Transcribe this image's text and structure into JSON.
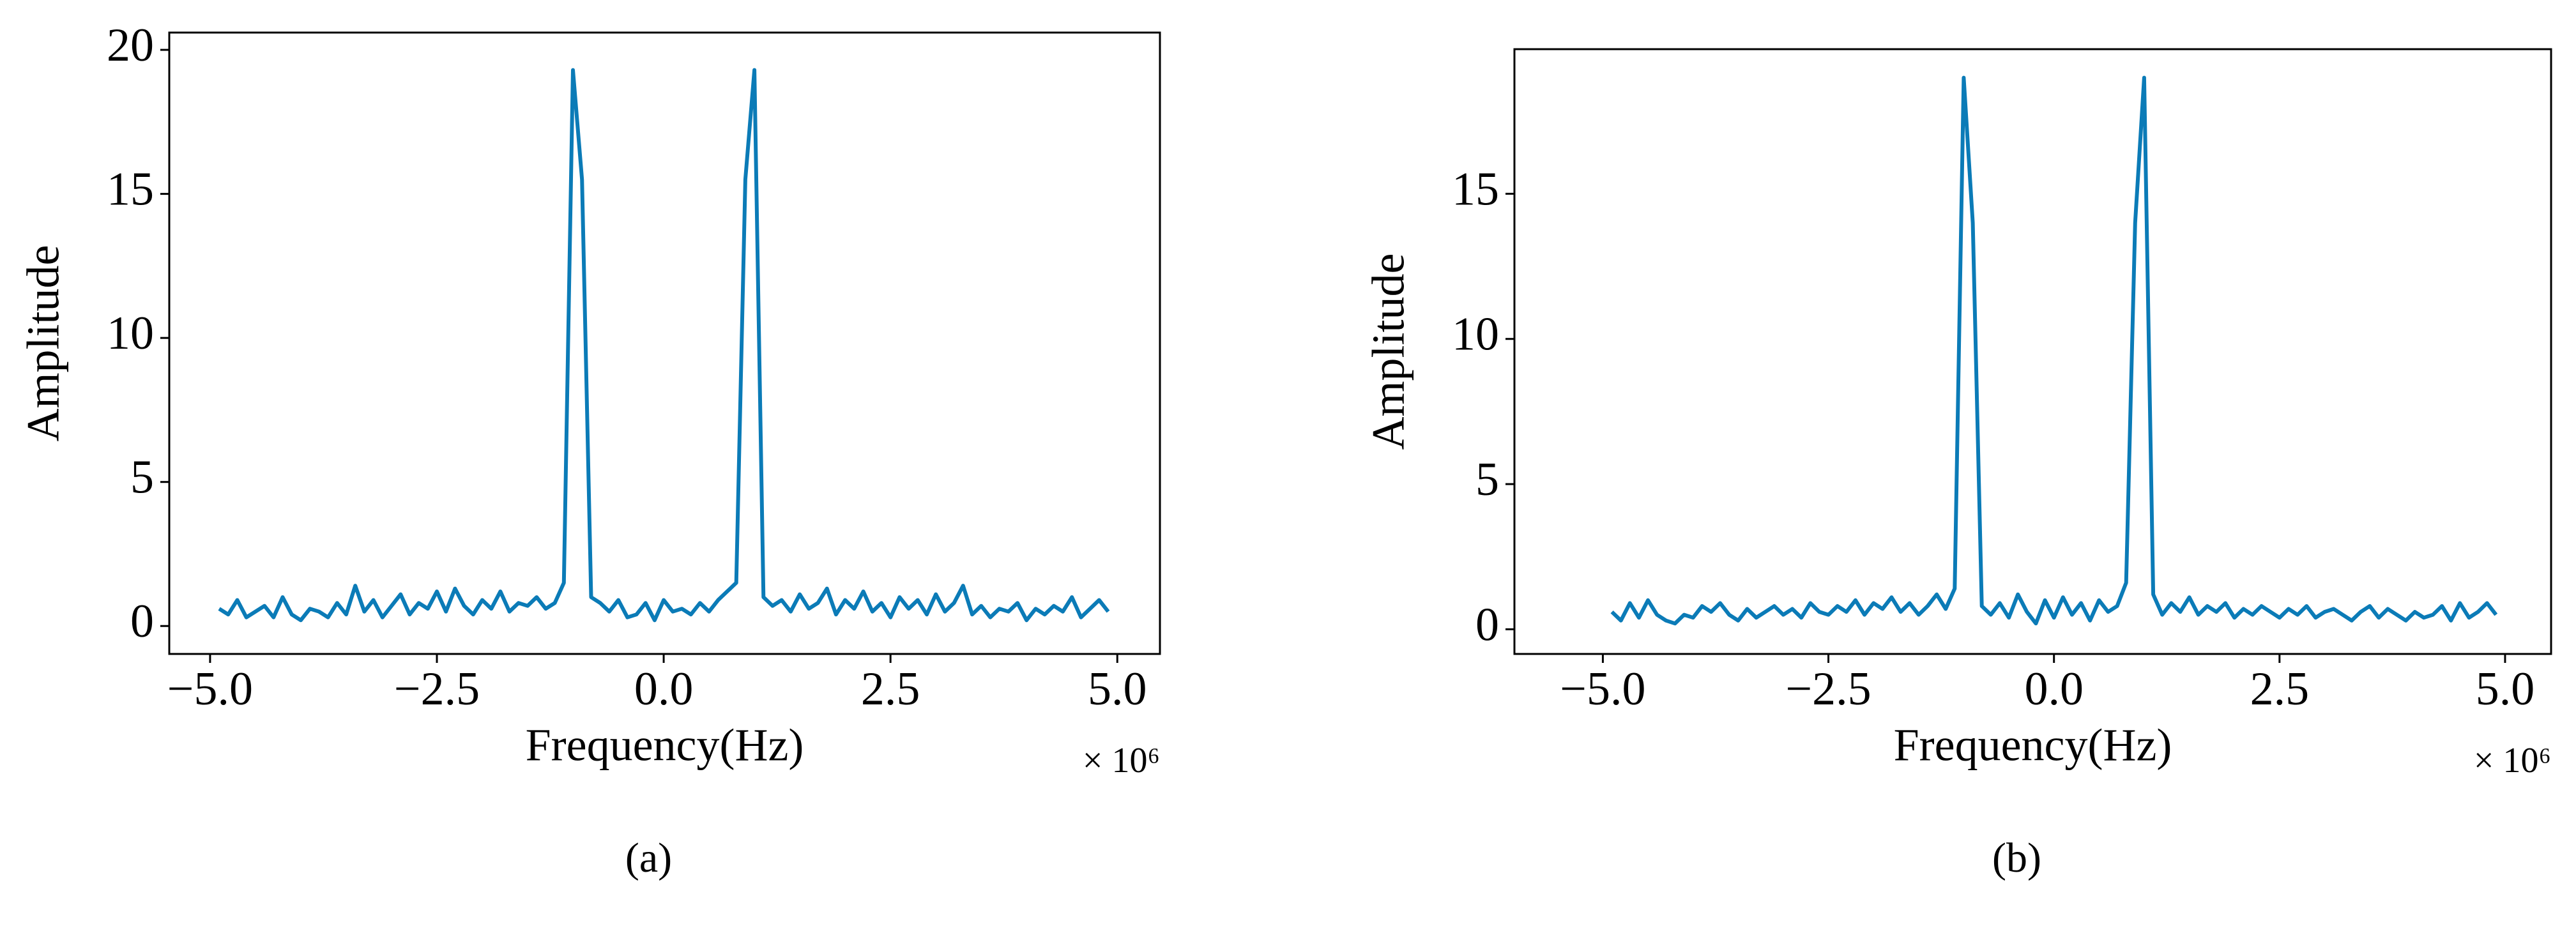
{
  "chart_data": [
    {
      "type": "line",
      "panel_label": "(a)",
      "xlabel": "Frequency(Hz)",
      "ylabel": "Amplitude",
      "x_offset_label": "× 10⁶",
      "xlim": [
        -5.45,
        5.47
      ],
      "ylim": [
        -0.97,
        20.6
      ],
      "xticks": [
        {
          "value": -5,
          "label": "−5.0"
        },
        {
          "value": -2.5,
          "label": "−2.5"
        },
        {
          "value": 0,
          "label": "0.0"
        },
        2.5,
        {
          "value": 5,
          "label": "5.0"
        }
      ],
      "yticks": [
        0,
        5,
        10,
        15,
        20
      ],
      "grid": false,
      "series": [
        {
          "color": "#0b7bb7",
          "x": [
            -4.9,
            -4.8,
            -4.7,
            -4.6,
            -4.5,
            -4.4,
            -4.3,
            -4.2,
            -4.1,
            -4.0,
            -3.9,
            -3.8,
            -3.7,
            -3.6,
            -3.5,
            -3.4,
            -3.3,
            -3.2,
            -3.1,
            -3.0,
            -2.9,
            -2.8,
            -2.7,
            -2.6,
            -2.5,
            -2.4,
            -2.3,
            -2.2,
            -2.1,
            -2.0,
            -1.9,
            -1.8,
            -1.7,
            -1.6,
            -1.5,
            -1.4,
            -1.3,
            -1.2,
            -1.1,
            -1.0,
            -0.9,
            -0.8,
            -0.7,
            -0.6,
            -0.5,
            -0.4,
            -0.3,
            -0.2,
            -0.1,
            0.0,
            0.1,
            0.2,
            0.3,
            0.4,
            0.5,
            0.6,
            0.7,
            0.8,
            0.9,
            1.0,
            1.1,
            1.2,
            1.3,
            1.4,
            1.5,
            1.6,
            1.7,
            1.8,
            1.9,
            2.0,
            2.1,
            2.2,
            2.3,
            2.4,
            2.5,
            2.6,
            2.7,
            2.8,
            2.9,
            3.0,
            3.1,
            3.2,
            3.3,
            3.4,
            3.5,
            3.6,
            3.7,
            3.8,
            3.9,
            4.0,
            4.1,
            4.2,
            4.3,
            4.4,
            4.5,
            4.6,
            4.7,
            4.8,
            4.9
          ],
          "values": [
            0.6,
            0.4,
            0.9,
            0.3,
            0.5,
            0.7,
            0.3,
            1.0,
            0.4,
            0.2,
            0.6,
            0.5,
            0.3,
            0.8,
            0.4,
            1.4,
            0.5,
            0.9,
            0.3,
            0.7,
            1.1,
            0.4,
            0.8,
            0.6,
            1.2,
            0.5,
            1.3,
            0.7,
            0.4,
            0.9,
            0.6,
            1.2,
            0.5,
            0.8,
            0.7,
            1.0,
            0.6,
            0.8,
            1.5,
            19.3,
            15.5,
            1.0,
            0.8,
            0.5,
            0.9,
            0.3,
            0.4,
            0.8,
            0.2,
            0.9,
            0.5,
            0.6,
            0.4,
            0.8,
            0.5,
            0.9,
            1.2,
            1.5,
            15.5,
            19.3,
            1.0,
            0.7,
            0.9,
            0.5,
            1.1,
            0.6,
            0.8,
            1.3,
            0.4,
            0.9,
            0.6,
            1.2,
            0.5,
            0.8,
            0.3,
            1.0,
            0.6,
            0.9,
            0.4,
            1.1,
            0.5,
            0.8,
            1.4,
            0.4,
            0.7,
            0.3,
            0.6,
            0.5,
            0.8,
            0.2,
            0.6,
            0.4,
            0.7,
            0.5,
            1.0,
            0.3,
            0.6,
            0.9,
            0.5
          ]
        }
      ]
    },
    {
      "type": "line",
      "panel_label": "(b)",
      "xlabel": "Frequency(Hz)",
      "ylabel": "Amplitude",
      "x_offset_label": "× 10⁶",
      "xlim": [
        -5.98,
        5.51
      ],
      "ylim": [
        -0.85,
        19.98
      ],
      "xticks": [
        {
          "value": -5,
          "label": "−5.0"
        },
        {
          "value": -2.5,
          "label": "−2.5"
        },
        {
          "value": 0,
          "label": "0.0"
        },
        2.5,
        {
          "value": 5,
          "label": "5.0"
        }
      ],
      "yticks": [
        0,
        5,
        10,
        15
      ],
      "grid": false,
      "series": [
        {
          "color": "#0b7bb7",
          "x": [
            -4.9,
            -4.8,
            -4.7,
            -4.6,
            -4.5,
            -4.4,
            -4.3,
            -4.2,
            -4.1,
            -4.0,
            -3.9,
            -3.8,
            -3.7,
            -3.6,
            -3.5,
            -3.4,
            -3.3,
            -3.2,
            -3.1,
            -3.0,
            -2.9,
            -2.8,
            -2.7,
            -2.6,
            -2.5,
            -2.4,
            -2.3,
            -2.2,
            -2.1,
            -2.0,
            -1.9,
            -1.8,
            -1.7,
            -1.6,
            -1.5,
            -1.4,
            -1.3,
            -1.2,
            -1.1,
            -1.0,
            -0.9,
            -0.8,
            -0.7,
            -0.6,
            -0.5,
            -0.4,
            -0.3,
            -0.2,
            -0.1,
            0.0,
            0.1,
            0.2,
            0.3,
            0.4,
            0.5,
            0.6,
            0.7,
            0.8,
            0.9,
            1.0,
            1.1,
            1.2,
            1.3,
            1.4,
            1.5,
            1.6,
            1.7,
            1.8,
            1.9,
            2.0,
            2.1,
            2.2,
            2.3,
            2.4,
            2.5,
            2.6,
            2.7,
            2.8,
            2.9,
            3.0,
            3.1,
            3.2,
            3.3,
            3.4,
            3.5,
            3.6,
            3.7,
            3.8,
            3.9,
            4.0,
            4.1,
            4.2,
            4.3,
            4.4,
            4.5,
            4.6,
            4.7,
            4.8,
            4.9
          ],
          "values": [
            0.6,
            0.3,
            0.9,
            0.4,
            1.0,
            0.5,
            0.3,
            0.2,
            0.5,
            0.4,
            0.8,
            0.6,
            0.9,
            0.5,
            0.3,
            0.7,
            0.4,
            0.6,
            0.8,
            0.5,
            0.7,
            0.4,
            0.9,
            0.6,
            0.5,
            0.8,
            0.6,
            1.0,
            0.5,
            0.9,
            0.7,
            1.1,
            0.6,
            0.9,
            0.5,
            0.8,
            1.2,
            0.7,
            1.4,
            19.0,
            14.0,
            0.8,
            0.5,
            0.9,
            0.4,
            1.2,
            0.6,
            0.2,
            1.0,
            0.4,
            1.1,
            0.5,
            0.9,
            0.3,
            1.0,
            0.6,
            0.8,
            1.6,
            14.0,
            19.0,
            1.2,
            0.5,
            0.9,
            0.6,
            1.1,
            0.5,
            0.8,
            0.6,
            0.9,
            0.4,
            0.7,
            0.5,
            0.8,
            0.6,
            0.4,
            0.7,
            0.5,
            0.8,
            0.4,
            0.6,
            0.7,
            0.5,
            0.3,
            0.6,
            0.8,
            0.4,
            0.7,
            0.5,
            0.3,
            0.6,
            0.4,
            0.5,
            0.8,
            0.3,
            0.9,
            0.4,
            0.6,
            0.9,
            0.5
          ]
        }
      ]
    }
  ]
}
